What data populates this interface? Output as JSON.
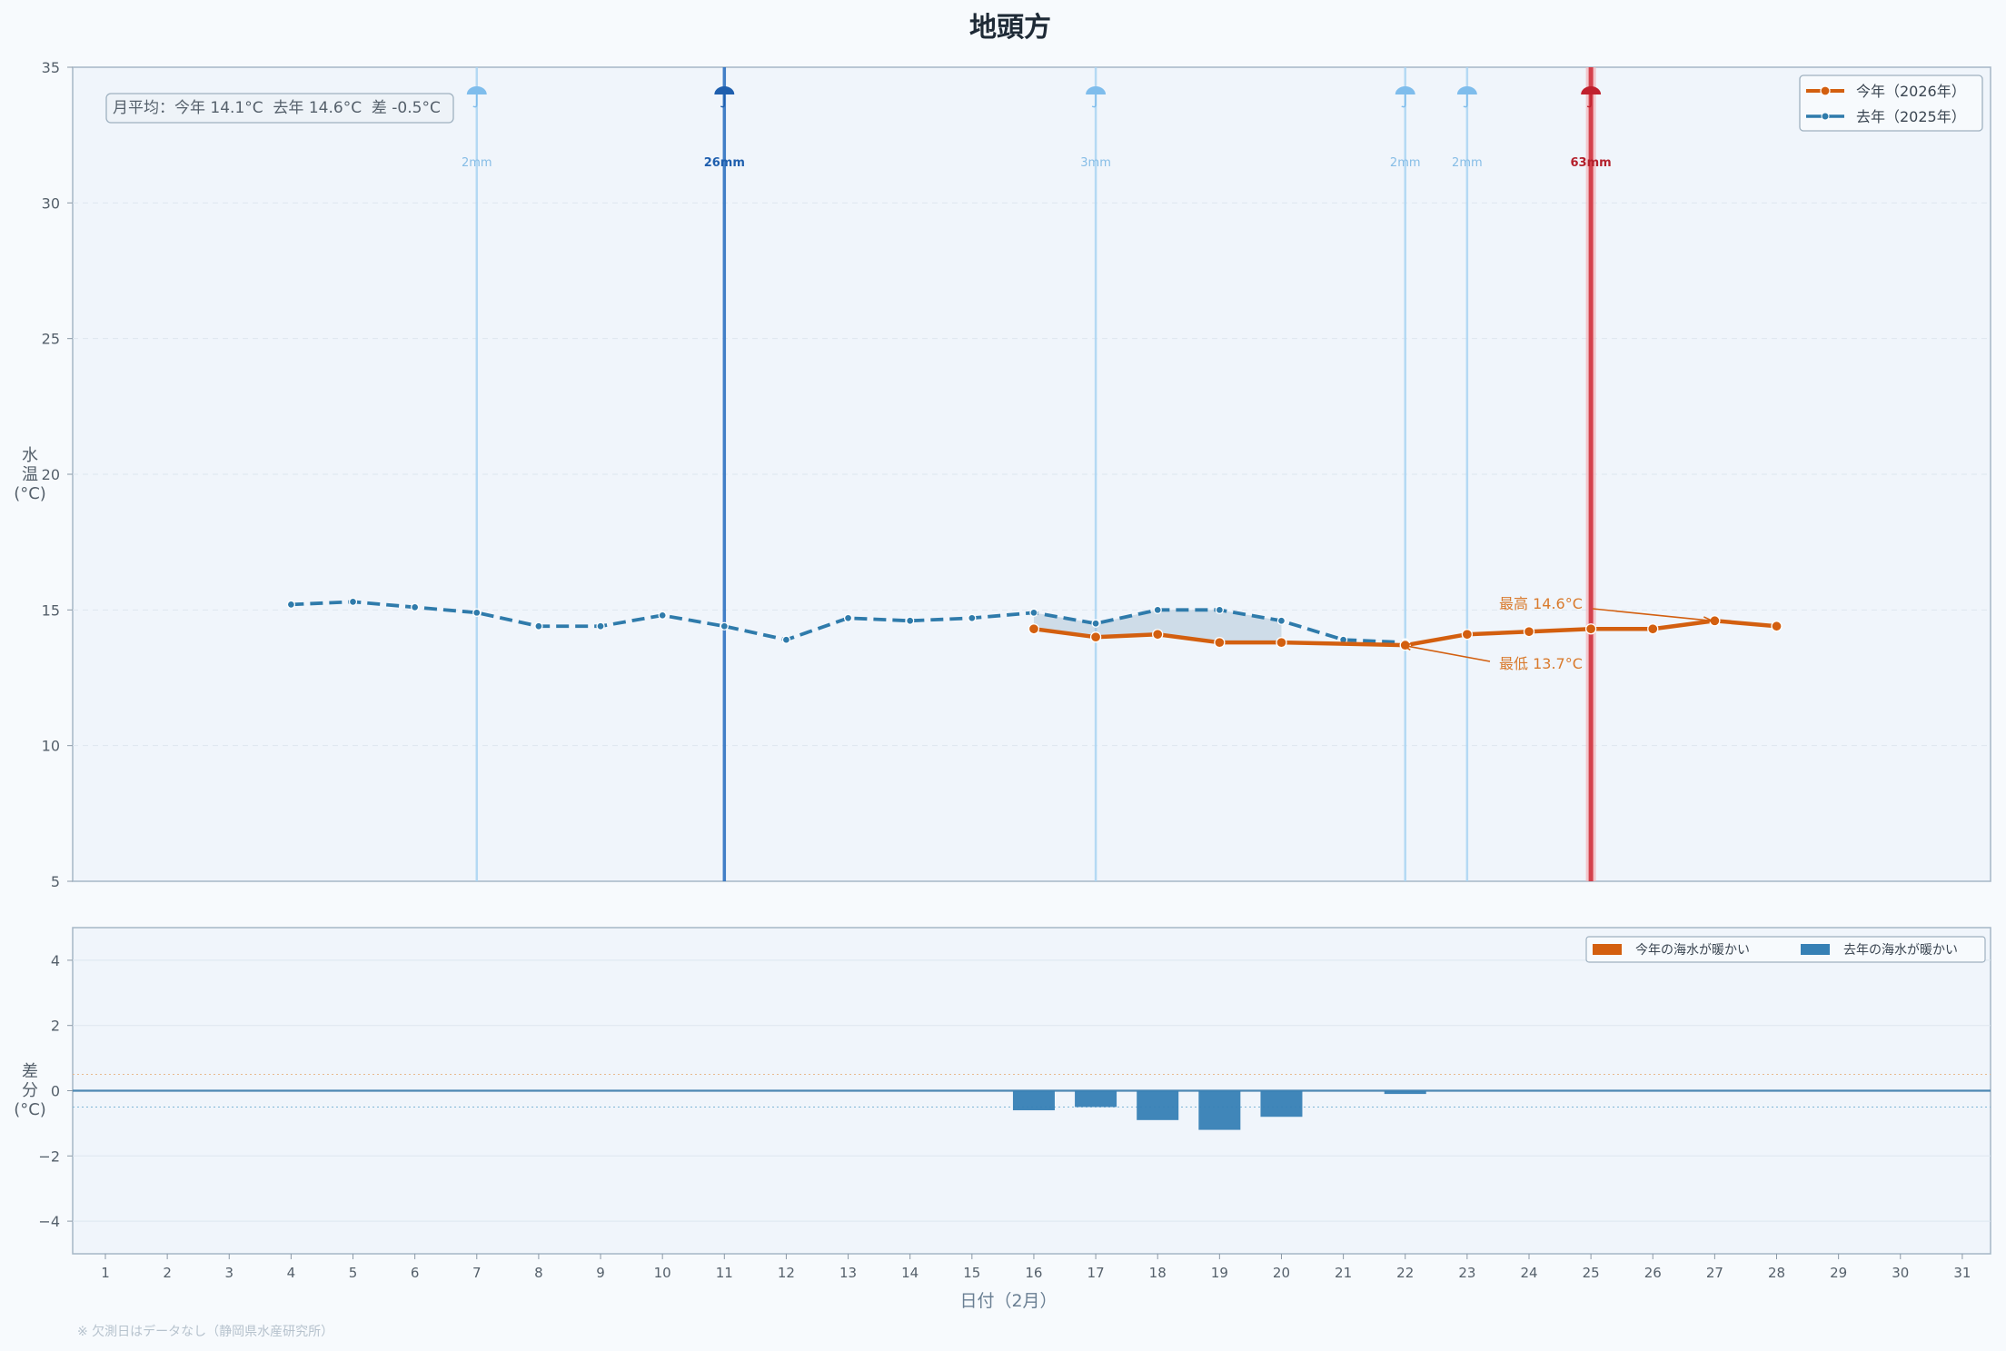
{
  "title": "地頭方",
  "footnote": "※ 欠測日はデータなし（静岡県水産研究所）",
  "monthly_average": "月平均：今年 14.1°C  去年 14.6°C  差 -0.5°C",
  "colors": {
    "this_year": "#d35f0f",
    "last_year": "#2f7bab",
    "rain_light": "#a9d3f2",
    "rain_medium": "#2f72c1",
    "rain_heavy": "#d0323e",
    "bar_cold": "#3680b5",
    "bar_warm": "#d35f0f"
  },
  "chart_data": [
    {
      "type": "line",
      "xlabel": "日付（2月）",
      "ylabel": "水温(°C)",
      "ylim": [
        5,
        35
      ],
      "yticks": [
        5,
        10,
        15,
        20,
        25,
        30,
        35
      ],
      "x": [
        1,
        2,
        3,
        4,
        5,
        6,
        7,
        8,
        9,
        10,
        11,
        12,
        13,
        14,
        15,
        16,
        17,
        18,
        19,
        20,
        21,
        22,
        23,
        24,
        25,
        26,
        27,
        28,
        29,
        30,
        31
      ],
      "legend_position": "top-right",
      "series": [
        {
          "name": "今年（2026年）",
          "points": [
            [
              16,
              14.3
            ],
            [
              17,
              14.0
            ],
            [
              18,
              14.1
            ],
            [
              19,
              13.8
            ],
            [
              20,
              13.8
            ],
            [
              22,
              13.7
            ],
            [
              23,
              14.1
            ],
            [
              24,
              14.2
            ],
            [
              25,
              14.3
            ],
            [
              26,
              14.3
            ],
            [
              27,
              14.6
            ],
            [
              28,
              14.4
            ]
          ]
        },
        {
          "name": "去年（2025年）",
          "points": [
            [
              4,
              15.2
            ],
            [
              5,
              15.3
            ],
            [
              6,
              15.1
            ],
            [
              7,
              14.9
            ],
            [
              8,
              14.4
            ],
            [
              9,
              14.4
            ],
            [
              10,
              14.8
            ],
            [
              11,
              14.4
            ],
            [
              12,
              13.9
            ],
            [
              13,
              14.7
            ],
            [
              14,
              14.6
            ],
            [
              15,
              14.7
            ],
            [
              16,
              14.9
            ],
            [
              17,
              14.5
            ],
            [
              18,
              15.0
            ],
            [
              19,
              15.0
            ],
            [
              20,
              14.6
            ],
            [
              21,
              13.9
            ],
            [
              22,
              13.8
            ]
          ]
        }
      ],
      "rain": [
        {
          "day": 7,
          "label": "2mm",
          "level": "light"
        },
        {
          "day": 11,
          "label": "26mm",
          "level": "medium"
        },
        {
          "day": 17,
          "label": "3mm",
          "level": "light"
        },
        {
          "day": 22,
          "label": "2mm",
          "level": "light"
        },
        {
          "day": 23,
          "label": "2mm",
          "level": "light"
        },
        {
          "day": 25,
          "label": "63mm",
          "level": "heavy"
        }
      ],
      "annotations": [
        {
          "text": "最高 14.6°C",
          "day": 27,
          "value": 14.6
        },
        {
          "text": "最低 13.7°C",
          "day": 22,
          "value": 13.7
        }
      ]
    },
    {
      "type": "bar",
      "ylabel": "差分(°C)",
      "ylim": [
        -5,
        5
      ],
      "yticks": [
        -4,
        -2,
        0,
        2,
        4
      ],
      "yticklabels": [
        "−4",
        "−2",
        "0",
        "2",
        "4"
      ],
      "legend": [
        "今年の海水が暖かい",
        "去年の海水が暖かい"
      ],
      "legend_position": "top-right",
      "bars": [
        [
          16,
          -0.6
        ],
        [
          17,
          -0.5
        ],
        [
          18,
          -0.9
        ],
        [
          19,
          -1.2
        ],
        [
          20,
          -0.8
        ],
        [
          22,
          -0.1
        ]
      ]
    }
  ]
}
